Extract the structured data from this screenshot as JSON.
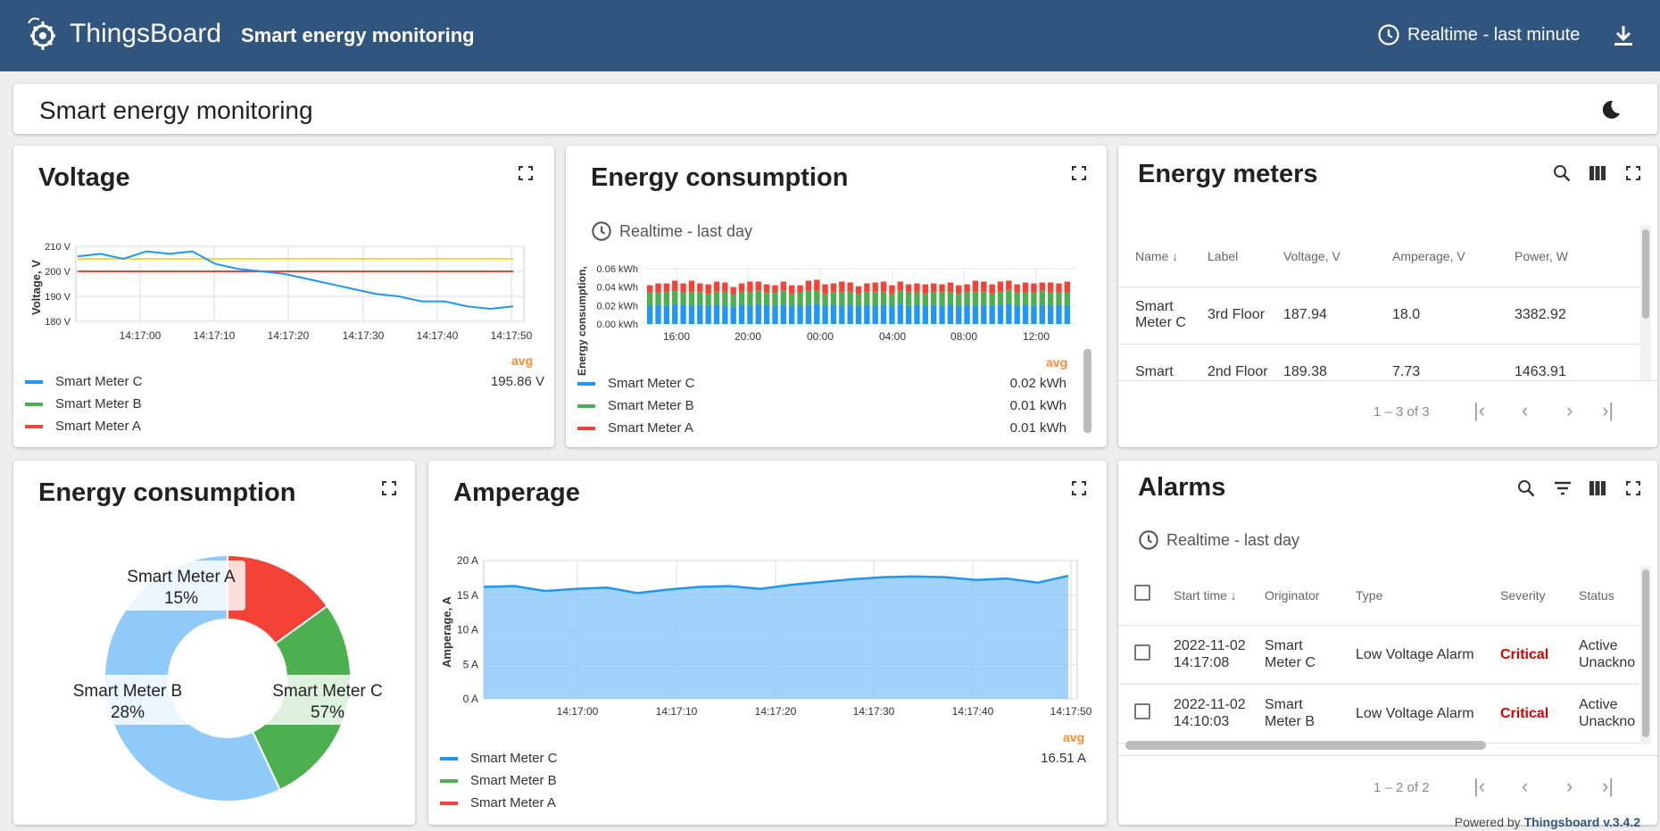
{
  "header": {
    "logo_text": "ThingsBoard",
    "dashboard_title": "Smart energy monitoring",
    "timewindow": "Realtime - last minute"
  },
  "titlebar": {
    "title": "Smart energy monitoring"
  },
  "voltage": {
    "title": "Voltage",
    "ylabel": "Voltage, V",
    "yticks": [
      "210 V",
      "200 V",
      "190 V",
      "180 V"
    ],
    "xticks": [
      "14:17:00",
      "14:17:10",
      "14:17:20",
      "14:17:30",
      "14:17:40",
      "14:17:50"
    ],
    "avg_label": "avg",
    "legend": [
      {
        "name": "Smart Meter C",
        "value": "195.86 V",
        "color": "#2196f3"
      },
      {
        "name": "Smart Meter B",
        "value": "",
        "color": "#4caf50"
      },
      {
        "name": "Smart Meter A",
        "value": "",
        "color": "#f44336"
      }
    ]
  },
  "energy_bar": {
    "title": "Energy consumption",
    "timewindow": "Realtime - last day",
    "ylabel": "Energy consumption,",
    "yticks": [
      "0.06 kWh",
      "0.04 kWh",
      "0.02 kWh",
      "0.00 kWh"
    ],
    "xticks": [
      "16:00",
      "20:00",
      "00:00",
      "04:00",
      "08:00",
      "12:00"
    ],
    "avg_label": "avg",
    "legend": [
      {
        "name": "Smart Meter C",
        "value": "0.02 kWh",
        "color": "#2196f3"
      },
      {
        "name": "Smart Meter B",
        "value": "0.01 kWh",
        "color": "#4caf50"
      },
      {
        "name": "Smart Meter A",
        "value": "0.01 kWh",
        "color": "#f44336"
      }
    ]
  },
  "meters": {
    "title": "Energy meters",
    "columns": [
      "Name",
      "Label",
      "Voltage, V",
      "Amperage, V",
      "Power, W"
    ],
    "rows": [
      {
        "name": "Smart Meter C",
        "label": "3rd Floor",
        "voltage": "187.94",
        "amperage": "18.0",
        "power": "3382.92"
      },
      {
        "name": "Smart",
        "label": "2nd Floor",
        "voltage": "189.38",
        "amperage": "7.73",
        "power": "1463.91"
      }
    ],
    "pager": "1 – 3 of 3"
  },
  "energy_pie": {
    "title": "Energy consumption",
    "slices": [
      {
        "name": "Smart Meter A",
        "pct": "15%",
        "value": 15,
        "color": "#f44336"
      },
      {
        "name": "Smart Meter B",
        "pct": "28%",
        "value": 28,
        "color": "#4caf50"
      },
      {
        "name": "Smart Meter C",
        "pct": "57%",
        "value": 57,
        "color": "#90caf9"
      }
    ]
  },
  "amperage": {
    "title": "Amperage",
    "ylabel": "Amperage, A",
    "yticks": [
      "20 A",
      "15 A",
      "10 A",
      "5 A",
      "0 A"
    ],
    "xticks": [
      "14:17:00",
      "14:17:10",
      "14:17:20",
      "14:17:30",
      "14:17:40",
      "14:17:50"
    ],
    "avg_label": "avg",
    "legend": [
      {
        "name": "Smart Meter C",
        "value": "16.51 A",
        "color": "#2196f3"
      },
      {
        "name": "Smart Meter B",
        "value": "",
        "color": "#4caf50"
      },
      {
        "name": "Smart Meter A",
        "value": "",
        "color": "#f44336"
      }
    ]
  },
  "alarms": {
    "title": "Alarms",
    "timewindow": "Realtime - last day",
    "columns": [
      "Start time",
      "Originator",
      "Type",
      "Severity",
      "Status"
    ],
    "rows": [
      {
        "date": "2022-11-02",
        "time": "14:17:08",
        "orig1": "Smart",
        "orig2": "Meter C",
        "type": "Low Voltage Alarm",
        "severity": "Critical",
        "status1": "Active",
        "status2": "Unackno"
      },
      {
        "date": "2022-11-02",
        "time": "14:10:03",
        "orig1": "Smart",
        "orig2": "Meter B",
        "type": "Low Voltage Alarm",
        "severity": "Critical",
        "status1": "Active",
        "status2": "Unackno"
      }
    ],
    "pager": "1 – 2 of 2"
  },
  "footer": {
    "powered_by": "Powered by",
    "link": "Thingsboard v.3.4.2"
  },
  "chart_data": [
    {
      "type": "line",
      "title": "Voltage",
      "ylabel": "Voltage, V",
      "ylim": [
        180,
        210
      ],
      "x": [
        "14:16:53",
        "14:16:56",
        "14:16:59",
        "14:17:02",
        "14:17:05",
        "14:17:08",
        "14:17:11",
        "14:17:14",
        "14:17:17",
        "14:17:20",
        "14:17:23",
        "14:17:26",
        "14:17:29",
        "14:17:32",
        "14:17:35",
        "14:17:38",
        "14:17:41",
        "14:17:44",
        "14:17:47",
        "14:17:50"
      ],
      "series": [
        {
          "name": "Smart Meter C",
          "values": [
            206,
            207,
            205,
            208,
            207,
            208,
            203,
            201,
            200,
            199,
            197,
            195,
            193,
            191,
            190,
            188,
            188,
            186,
            185,
            186
          ]
        },
        {
          "name": "Smart Meter B",
          "values": [
            205,
            205,
            205,
            205,
            205,
            205,
            205,
            205,
            205,
            205,
            205,
            205,
            205,
            205,
            205,
            205,
            205,
            205,
            205,
            205
          ]
        },
        {
          "name": "Smart Meter A",
          "values": [
            200,
            200,
            200,
            200,
            200,
            200,
            200,
            200,
            200,
            200,
            200,
            200,
            200,
            200,
            200,
            200,
            200,
            200,
            200,
            200
          ]
        }
      ]
    },
    {
      "type": "bar",
      "title": "Energy consumption",
      "ylabel": "Energy consumption,",
      "ylim": [
        0,
        0.06
      ],
      "xticks": [
        "16:00",
        "20:00",
        "00:00",
        "04:00",
        "08:00",
        "12:00"
      ],
      "series": [
        {
          "name": "Smart Meter C",
          "values": [
            0.02,
            0.021,
            0.02,
            0.022,
            0.021,
            0.02,
            0.021,
            0.02,
            0.021,
            0.02,
            0.019,
            0.021,
            0.02,
            0.022,
            0.021,
            0.02,
            0.021,
            0.02,
            0.02,
            0.021,
            0.022,
            0.02,
            0.021,
            0.02,
            0.021,
            0.02,
            0.021,
            0.02,
            0.021,
            0.02,
            0.022,
            0.02,
            0.021,
            0.02,
            0.021,
            0.02,
            0.021,
            0.02,
            0.021,
            0.02,
            0.021,
            0.02,
            0.021,
            0.022,
            0.02,
            0.021,
            0.02,
            0.021,
            0.02,
            0.021,
            0.02
          ]
        },
        {
          "name": "Smart Meter B",
          "values": [
            0.014,
            0.013,
            0.015,
            0.014,
            0.013,
            0.015,
            0.014,
            0.013,
            0.014,
            0.015,
            0.013,
            0.014,
            0.015,
            0.014,
            0.013,
            0.014,
            0.015,
            0.013,
            0.014,
            0.015,
            0.014,
            0.013,
            0.014,
            0.015,
            0.014,
            0.013,
            0.014,
            0.015,
            0.014,
            0.013,
            0.014,
            0.015,
            0.014,
            0.013,
            0.014,
            0.015,
            0.014,
            0.013,
            0.014,
            0.015,
            0.014,
            0.013,
            0.014,
            0.015,
            0.014,
            0.013,
            0.014,
            0.015,
            0.014,
            0.013,
            0.014
          ]
        },
        {
          "name": "Smart Meter A",
          "values": [
            0.008,
            0.01,
            0.009,
            0.011,
            0.01,
            0.012,
            0.009,
            0.01,
            0.011,
            0.01,
            0.008,
            0.009,
            0.011,
            0.01,
            0.009,
            0.008,
            0.01,
            0.009,
            0.008,
            0.011,
            0.012,
            0.01,
            0.009,
            0.011,
            0.01,
            0.008,
            0.009,
            0.01,
            0.011,
            0.009,
            0.01,
            0.008,
            0.009,
            0.01,
            0.009,
            0.008,
            0.01,
            0.009,
            0.008,
            0.012,
            0.011,
            0.01,
            0.011,
            0.01,
            0.009,
            0.011,
            0.01,
            0.009,
            0.011,
            0.01,
            0.012
          ]
        }
      ]
    },
    {
      "type": "pie",
      "title": "Energy consumption",
      "categories": [
        "Smart Meter A",
        "Smart Meter B",
        "Smart Meter C"
      ],
      "values": [
        15,
        28,
        57
      ]
    },
    {
      "type": "area",
      "title": "Amperage",
      "ylabel": "Amperage, A",
      "ylim": [
        0,
        20
      ],
      "x": [
        "14:16:53",
        "14:16:56",
        "14:16:59",
        "14:17:02",
        "14:17:05",
        "14:17:08",
        "14:17:11",
        "14:17:14",
        "14:17:17",
        "14:17:20",
        "14:17:23",
        "14:17:26",
        "14:17:29",
        "14:17:32",
        "14:17:35",
        "14:17:38",
        "14:17:41",
        "14:17:44",
        "14:17:47",
        "14:17:50"
      ],
      "series": [
        {
          "name": "Smart Meter C",
          "values": [
            16.2,
            16.3,
            15.6,
            15.9,
            16.1,
            15.3,
            15.8,
            16.2,
            16.3,
            15.9,
            16.5,
            16.9,
            17.3,
            17.6,
            17.7,
            17.6,
            17.2,
            17.4,
            16.8,
            17.8
          ]
        }
      ]
    }
  ]
}
